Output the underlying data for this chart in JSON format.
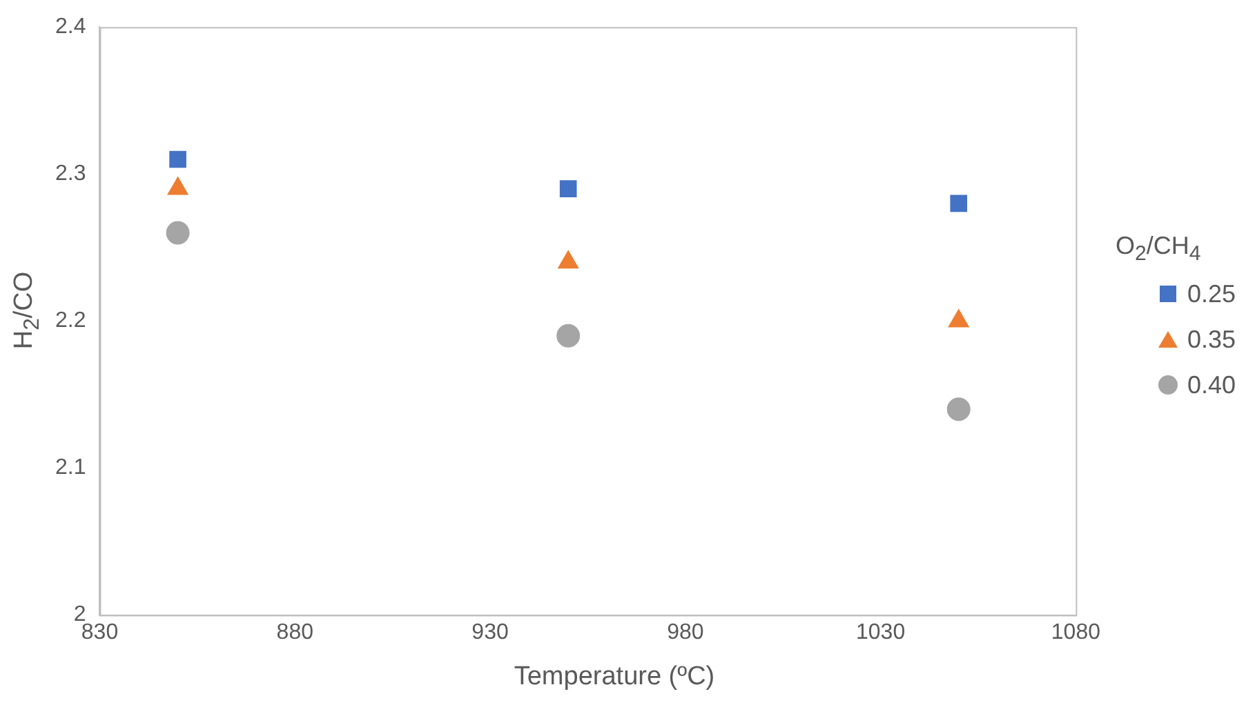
{
  "chart_data": {
    "type": "scatter",
    "xlabel": "Temperature (ºC)",
    "ylabel": "H$_{2}$/CO",
    "legend_title": "O$_{2}$/CH$_{4}$",
    "legend": "right",
    "grid": false,
    "xlim": [
      830,
      1080
    ],
    "xticks": [
      830,
      880,
      930,
      980,
      1030,
      1080
    ],
    "ylim": [
      2,
      2.4
    ],
    "yticks": [
      2,
      2.1,
      2.2,
      2.3,
      2.4
    ],
    "x": [
      850,
      950,
      1050
    ],
    "series": [
      {
        "name": "0.25",
        "color": "#4472c4",
        "marker": "square",
        "values": [
          2.31,
          2.29,
          2.28
        ]
      },
      {
        "name": "0.35",
        "color": "#ed7d31",
        "marker": "triangle",
        "values": [
          2.29,
          2.24,
          2.2
        ]
      },
      {
        "name": "0.40",
        "color": "#a5a5a5",
        "marker": "circle",
        "values": [
          2.26,
          2.19,
          2.14
        ]
      }
    ]
  }
}
